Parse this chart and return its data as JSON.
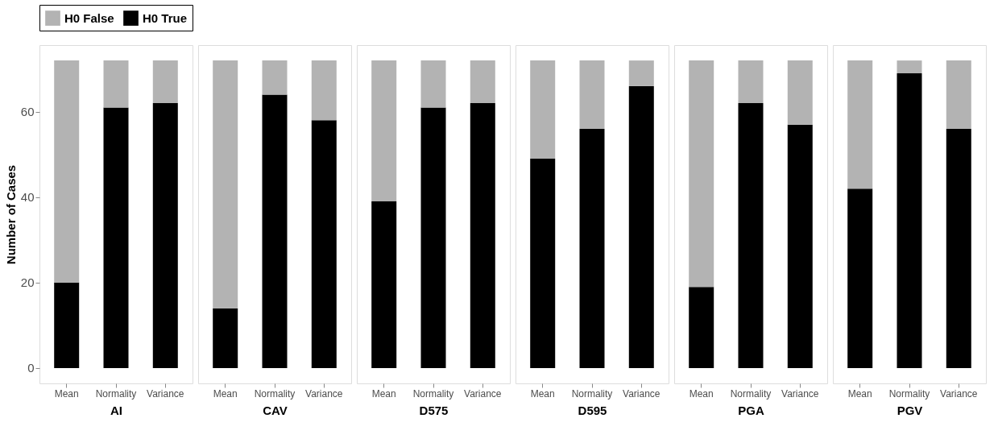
{
  "chart_data": [
    {
      "type": "bar",
      "stacked": true,
      "xlabel": "AI",
      "ylabel": "Number of Cases",
      "categories": [
        "Mean",
        "Normality",
        "Variance"
      ],
      "ylim": [
        -3.6,
        75.6
      ],
      "yticks": [
        0,
        20,
        40,
        60
      ],
      "grid": false,
      "legend": "top",
      "series": [
        {
          "name": "H0 True",
          "color": "#000000",
          "values": [
            20,
            61,
            62
          ]
        },
        {
          "name": "H0 False",
          "color": "#b3b3b3",
          "values": [
            52,
            11,
            10
          ]
        }
      ]
    },
    {
      "type": "bar",
      "stacked": true,
      "xlabel": "CAV",
      "categories": [
        "Mean",
        "Normality",
        "Variance"
      ],
      "ylim": [
        -3.6,
        75.6
      ],
      "tick_labels": "x",
      "grid": false,
      "series": [
        {
          "color": "#000000",
          "values": [
            14,
            64,
            58
          ]
        },
        {
          "color": "#b3b3b3",
          "values": [
            58,
            8,
            14
          ]
        }
      ]
    },
    {
      "type": "bar",
      "stacked": true,
      "xlabel": "D575",
      "categories": [
        "Mean",
        "Normality",
        "Variance"
      ],
      "ylim": [
        -3.6,
        75.6
      ],
      "tick_labels": "x",
      "grid": false,
      "series": [
        {
          "color": "#000000",
          "values": [
            39,
            61,
            62
          ]
        },
        {
          "color": "#b3b3b3",
          "values": [
            33,
            11,
            10
          ]
        }
      ]
    },
    {
      "type": "bar",
      "stacked": true,
      "xlabel": "D595",
      "categories": [
        "Mean",
        "Normality",
        "Variance"
      ],
      "ylim": [
        -3.6,
        75.6
      ],
      "tick_labels": "x",
      "grid": false,
      "series": [
        {
          "color": "#000000",
          "values": [
            49,
            56,
            66
          ]
        },
        {
          "color": "#b3b3b3",
          "values": [
            23,
            16,
            6
          ]
        }
      ]
    },
    {
      "type": "bar",
      "stacked": true,
      "xlabel": "PGA",
      "categories": [
        "Mean",
        "Normality",
        "Variance"
      ],
      "ylim": [
        -3.6,
        75.6
      ],
      "tick_labels": "x",
      "grid": false,
      "series": [
        {
          "color": "#000000",
          "values": [
            19,
            62,
            57
          ]
        },
        {
          "color": "#b3b3b3",
          "values": [
            53,
            10,
            15
          ]
        }
      ]
    },
    {
      "type": "bar",
      "stacked": true,
      "xlabel": "PGV",
      "categories": [
        "Mean",
        "Normality",
        "Variance"
      ],
      "ylim": [
        -3.6,
        75.6
      ],
      "tick_labels": "x",
      "grid": false,
      "series": [
        {
          "color": "#000000",
          "values": [
            42,
            69,
            56
          ]
        },
        {
          "color": "#b3b3b3",
          "values": [
            30,
            3,
            16
          ]
        }
      ]
    }
  ]
}
